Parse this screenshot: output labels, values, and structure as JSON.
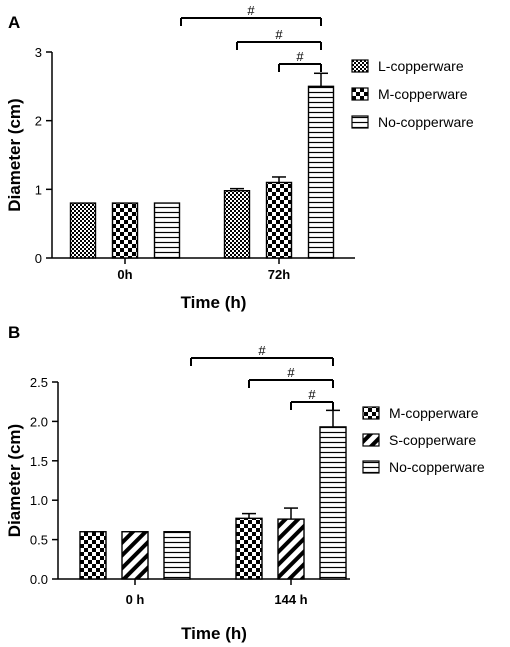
{
  "chart_data": [
    {
      "type": "bar",
      "panel": "A",
      "categories": [
        "0h",
        "72h"
      ],
      "series": [
        {
          "name": "L-copperware",
          "pattern": "checker",
          "values": [
            0.8,
            0.98
          ],
          "errors": [
            0,
            0.03
          ]
        },
        {
          "name": "M-copperware",
          "pattern": "bigchecker",
          "values": [
            0.8,
            1.1
          ],
          "errors": [
            0,
            0.08
          ]
        },
        {
          "name": "No-copperware",
          "pattern": "hlines",
          "values": [
            0.8,
            2.5
          ],
          "errors": [
            0,
            0.19
          ]
        }
      ],
      "xlabel": "Time (h)",
      "ylabel": "Diameter (cm)",
      "ylim": [
        0,
        3
      ],
      "yticks": [
        0,
        1,
        2,
        3
      ],
      "ytick_labels": [
        "0",
        "1",
        "2",
        "3"
      ],
      "legend_position": "right",
      "grid": false,
      "significance": [
        {
          "label": "#",
          "from_series": 0,
          "to_series": 2,
          "category": 1,
          "group": "start"
        },
        {
          "label": "#",
          "from_series": 1,
          "to_series": 2,
          "category": 1
        },
        {
          "label": "#",
          "from_series": 2,
          "to_series": 2,
          "category": 1,
          "short": true
        }
      ]
    },
    {
      "type": "bar",
      "panel": "B",
      "categories": [
        "0 h",
        "144 h"
      ],
      "series": [
        {
          "name": "M-copperware",
          "pattern": "bigchecker",
          "values": [
            0.6,
            0.77
          ],
          "errors": [
            0,
            0.06
          ]
        },
        {
          "name": "S-copperware",
          "pattern": "diag",
          "values": [
            0.6,
            0.76
          ],
          "errors": [
            0,
            0.14
          ]
        },
        {
          "name": "No-copperware",
          "pattern": "hlines",
          "values": [
            0.6,
            1.93
          ],
          "errors": [
            0,
            0.21
          ]
        }
      ],
      "xlabel": "Time (h)",
      "ylabel": "Diameter (cm)",
      "ylim": [
        0,
        2.5
      ],
      "yticks": [
        0,
        0.5,
        1.0,
        1.5,
        2.0,
        2.5
      ],
      "ytick_labels": [
        "0.0",
        "0.5",
        "1.0",
        "1.5",
        "2.0",
        "2.5"
      ],
      "legend_position": "right",
      "grid": false,
      "significance": [
        {
          "label": "#",
          "from_series": 0,
          "to_series": 2,
          "category": 1,
          "group": "start"
        },
        {
          "label": "#",
          "from_series": 1,
          "to_series": 2,
          "category": 1
        },
        {
          "label": "#",
          "from_series": 2,
          "to_series": 2,
          "category": 1,
          "short": true
        }
      ]
    }
  ]
}
